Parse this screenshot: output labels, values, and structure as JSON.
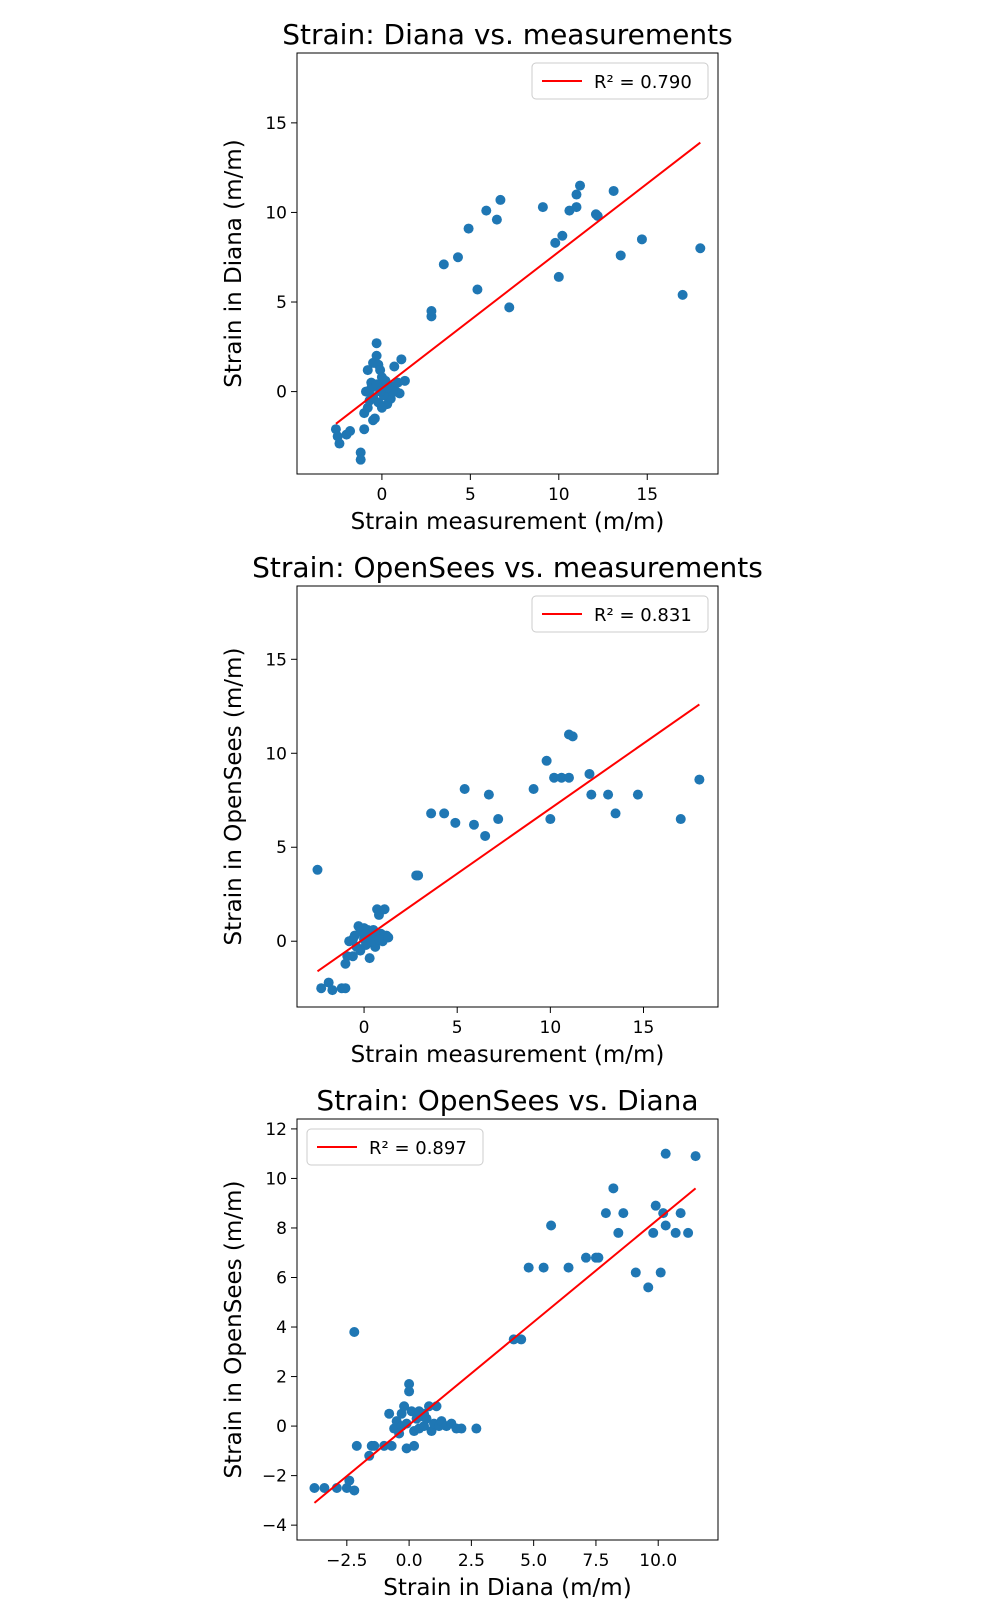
{
  "chart_data": [
    {
      "type": "scatter",
      "title": "Strain: Diana vs. measurements",
      "xlabel": "Strain measurement (m/m)",
      "ylabel": "Strain in Diana (m/m)",
      "xlim": [
        -4.8,
        19.0
      ],
      "ylim": [
        -4.6,
        18.9
      ],
      "xticks": [
        0,
        5,
        10,
        15
      ],
      "xtick_labels": [
        "0",
        "5",
        "10",
        "15"
      ],
      "yticks": [
        0,
        5,
        10,
        15
      ],
      "ytick_labels": [
        "0",
        "5",
        "10",
        "15"
      ],
      "grid": false,
      "legend_position": "top-right",
      "legend": "R² = 0.790",
      "series": [
        {
          "points": [
            [
              -2.6,
              -2.1
            ],
            [
              -2.5,
              -2.5
            ],
            [
              -2.4,
              -2.9
            ],
            [
              -2.0,
              -2.4
            ],
            [
              -1.8,
              -2.2
            ],
            [
              -1.2,
              -3.4
            ],
            [
              -1.2,
              -3.8
            ],
            [
              -1.0,
              -2.1
            ],
            [
              -1.0,
              -1.2
            ],
            [
              -0.8,
              -0.9
            ],
            [
              -0.7,
              -0.5
            ],
            [
              -0.5,
              -1.6
            ],
            [
              -0.4,
              -1.5
            ],
            [
              -0.9,
              0.0
            ],
            [
              -0.8,
              1.2
            ],
            [
              -0.6,
              0.5
            ],
            [
              -0.5,
              1.6
            ],
            [
              -0.3,
              2.0
            ],
            [
              -0.3,
              2.7
            ],
            [
              -0.2,
              1.5
            ],
            [
              -0.1,
              1.2
            ],
            [
              0.0,
              0.8
            ],
            [
              0.1,
              0.4
            ],
            [
              0.2,
              -0.2
            ],
            [
              0.3,
              -0.7
            ],
            [
              0.4,
              0.1
            ],
            [
              0.5,
              -0.4
            ],
            [
              0.6,
              0.3
            ],
            [
              0.7,
              1.4
            ],
            [
              0.8,
              0.0
            ],
            [
              0.9,
              0.5
            ],
            [
              1.0,
              -0.1
            ],
            [
              1.1,
              1.8
            ],
            [
              1.3,
              0.6
            ],
            [
              -0.5,
              -0.3
            ],
            [
              -0.2,
              -0.6
            ],
            [
              0.0,
              -0.9
            ],
            [
              0.2,
              0.6
            ],
            [
              0.4,
              -0.3
            ],
            [
              0.6,
              0.0
            ],
            [
              -0.6,
              0.2
            ],
            [
              -0.3,
              0.4
            ],
            [
              0.1,
              -0.2
            ],
            [
              0.3,
              0.2
            ],
            [
              -0.1,
              0.0
            ],
            [
              2.8,
              4.2
            ],
            [
              2.8,
              4.5
            ],
            [
              3.5,
              7.1
            ],
            [
              4.3,
              7.5
            ],
            [
              4.9,
              9.1
            ],
            [
              5.4,
              5.7
            ],
            [
              5.9,
              10.1
            ],
            [
              6.5,
              9.6
            ],
            [
              6.7,
              10.7
            ],
            [
              7.2,
              4.7
            ],
            [
              9.1,
              10.3
            ],
            [
              9.8,
              8.3
            ],
            [
              10.0,
              6.4
            ],
            [
              10.2,
              8.7
            ],
            [
              10.6,
              10.1
            ],
            [
              11.0,
              10.3
            ],
            [
              11.0,
              11.0
            ],
            [
              11.2,
              11.5
            ],
            [
              12.1,
              9.9
            ],
            [
              12.2,
              9.8
            ],
            [
              13.1,
              11.2
            ],
            [
              13.5,
              7.6
            ],
            [
              14.7,
              8.5
            ],
            [
              17.0,
              5.4
            ],
            [
              18.0,
              8.0
            ]
          ]
        },
        {
          "type": "line",
          "name": "R² = 0.790",
          "color": "#ff0000",
          "points": [
            [
              -2.6,
              -1.8
            ],
            [
              18.0,
              13.9
            ]
          ]
        }
      ],
      "marker_color": "#1f77b4"
    },
    {
      "type": "scatter",
      "title": "Strain: OpenSees vs. measurements",
      "xlabel": "Strain measurement (m/m)",
      "ylabel": "Strain in OpenSees (m/m)",
      "xlim": [
        -3.6,
        19.0
      ],
      "ylim": [
        -3.5,
        18.9
      ],
      "xticks": [
        0,
        5,
        10,
        15
      ],
      "xtick_labels": [
        "0",
        "5",
        "10",
        "15"
      ],
      "yticks": [
        0,
        5,
        10,
        15
      ],
      "ytick_labels": [
        "0",
        "5",
        "10",
        "15"
      ],
      "grid": false,
      "legend_position": "top-right",
      "legend": "R² = 0.831",
      "series": [
        {
          "points": [
            [
              -2.5,
              3.8
            ],
            [
              -2.3,
              -2.5
            ],
            [
              -1.9,
              -2.2
            ],
            [
              -1.7,
              -2.6
            ],
            [
              -1.2,
              -2.5
            ],
            [
              -1.0,
              -2.5
            ],
            [
              -1.0,
              -1.2
            ],
            [
              -0.9,
              -0.8
            ],
            [
              -0.8,
              0.0
            ],
            [
              -0.6,
              -0.8
            ],
            [
              -0.5,
              0.3
            ],
            [
              -0.3,
              0.8
            ],
            [
              -0.2,
              0.5
            ],
            [
              0.0,
              0.1
            ],
            [
              0.1,
              -0.2
            ],
            [
              0.2,
              0.6
            ],
            [
              0.3,
              -0.9
            ],
            [
              0.4,
              0.3
            ],
            [
              0.5,
              0.6
            ],
            [
              0.6,
              -0.3
            ],
            [
              0.7,
              1.7
            ],
            [
              0.8,
              1.4
            ],
            [
              0.9,
              0.4
            ],
            [
              1.0,
              0.0
            ],
            [
              1.1,
              1.7
            ],
            [
              1.2,
              0.3
            ],
            [
              1.3,
              0.2
            ],
            [
              -0.4,
              -0.3
            ],
            [
              -0.2,
              -0.5
            ],
            [
              0.0,
              0.7
            ],
            [
              0.2,
              0.2
            ],
            [
              0.4,
              0.0
            ],
            [
              0.6,
              0.4
            ],
            [
              0.8,
              0.1
            ],
            [
              -0.6,
              0.1
            ],
            [
              0.1,
              0.4
            ],
            [
              2.8,
              3.5
            ],
            [
              2.9,
              3.5
            ],
            [
              3.6,
              6.8
            ],
            [
              4.3,
              6.8
            ],
            [
              4.9,
              6.3
            ],
            [
              5.4,
              8.1
            ],
            [
              5.9,
              6.2
            ],
            [
              6.5,
              5.6
            ],
            [
              6.7,
              7.8
            ],
            [
              7.2,
              6.5
            ],
            [
              9.1,
              8.1
            ],
            [
              9.8,
              9.6
            ],
            [
              10.0,
              6.5
            ],
            [
              10.2,
              8.7
            ],
            [
              10.6,
              8.7
            ],
            [
              11.0,
              8.7
            ],
            [
              11.0,
              11.0
            ],
            [
              11.2,
              10.9
            ],
            [
              12.1,
              8.9
            ],
            [
              12.2,
              7.8
            ],
            [
              13.1,
              7.8
            ],
            [
              13.5,
              6.8
            ],
            [
              14.7,
              7.8
            ],
            [
              17.0,
              6.5
            ],
            [
              18.0,
              8.6
            ]
          ]
        },
        {
          "type": "line",
          "name": "R² = 0.831",
          "color": "#ff0000",
          "points": [
            [
              -2.5,
              -1.6
            ],
            [
              18.0,
              12.6
            ]
          ]
        }
      ],
      "marker_color": "#1f77b4"
    },
    {
      "type": "scatter",
      "title": "Strain: OpenSees vs. Diana",
      "xlabel": "Strain in Diana (m/m)",
      "ylabel": "Strain in OpenSees (m/m)",
      "xlim": [
        -4.5,
        12.4
      ],
      "ylim": [
        -4.6,
        12.4
      ],
      "xticks": [
        -2.5,
        0.0,
        2.5,
        5.0,
        7.5,
        10.0
      ],
      "xtick_labels": [
        "−2.5",
        "0.0",
        "2.5",
        "5.0",
        "7.5",
        "10.0"
      ],
      "yticks": [
        -4,
        -2,
        0,
        2,
        4,
        6,
        8,
        10,
        12
      ],
      "ytick_labels": [
        "−4",
        "−2",
        "0",
        "2",
        "4",
        "6",
        "8",
        "10",
        "12"
      ],
      "grid": false,
      "legend_position": "top-left",
      "legend": "R² = 0.897",
      "series": [
        {
          "points": [
            [
              -3.8,
              -2.5
            ],
            [
              -3.4,
              -2.5
            ],
            [
              -2.9,
              -2.5
            ],
            [
              -2.5,
              -2.5
            ],
            [
              -2.4,
              -2.2
            ],
            [
              -2.2,
              -2.6
            ],
            [
              -2.2,
              3.8
            ],
            [
              -2.1,
              -0.8
            ],
            [
              -1.6,
              -1.2
            ],
            [
              -1.5,
              -0.8
            ],
            [
              -1.4,
              -0.8
            ],
            [
              -1.0,
              -0.8
            ],
            [
              -0.8,
              0.5
            ],
            [
              -0.7,
              -0.8
            ],
            [
              -0.6,
              -0.1
            ],
            [
              -0.5,
              0.2
            ],
            [
              -0.4,
              -0.3
            ],
            [
              -0.3,
              0.5
            ],
            [
              -0.2,
              0.8
            ],
            [
              -0.1,
              0.1
            ],
            [
              0.0,
              1.7
            ],
            [
              0.0,
              1.4
            ],
            [
              0.1,
              0.6
            ],
            [
              0.2,
              -0.2
            ],
            [
              0.3,
              0.3
            ],
            [
              0.4,
              -0.1
            ],
            [
              0.5,
              0.4
            ],
            [
              0.6,
              0.0
            ],
            [
              0.7,
              0.3
            ],
            [
              0.8,
              0.8
            ],
            [
              0.9,
              -0.2
            ],
            [
              1.0,
              0.1
            ],
            [
              1.1,
              0.8
            ],
            [
              1.2,
              0.0
            ],
            [
              1.3,
              0.2
            ],
            [
              1.5,
              0.0
            ],
            [
              1.7,
              0.1
            ],
            [
              1.9,
              -0.1
            ],
            [
              2.1,
              -0.1
            ],
            [
              2.7,
              -0.1
            ],
            [
              -0.1,
              -0.9
            ],
            [
              0.2,
              -0.8
            ],
            [
              0.4,
              0.6
            ],
            [
              -0.3,
              0.0
            ],
            [
              0.6,
              0.5
            ],
            [
              4.2,
              3.5
            ],
            [
              4.5,
              3.5
            ],
            [
              4.8,
              6.4
            ],
            [
              5.4,
              6.4
            ],
            [
              5.7,
              8.1
            ],
            [
              6.4,
              6.4
            ],
            [
              7.1,
              6.8
            ],
            [
              7.5,
              6.8
            ],
            [
              7.6,
              6.8
            ],
            [
              7.9,
              8.6
            ],
            [
              8.2,
              9.6
            ],
            [
              8.4,
              7.8
            ],
            [
              8.6,
              8.6
            ],
            [
              9.1,
              6.2
            ],
            [
              9.6,
              5.6
            ],
            [
              9.8,
              7.8
            ],
            [
              9.9,
              8.9
            ],
            [
              10.1,
              6.2
            ],
            [
              10.2,
              8.6
            ],
            [
              10.3,
              8.1
            ],
            [
              10.3,
              11.0
            ],
            [
              10.7,
              7.8
            ],
            [
              10.9,
              8.6
            ],
            [
              11.2,
              7.8
            ],
            [
              11.5,
              10.9
            ]
          ]
        },
        {
          "type": "line",
          "name": "R² = 0.897",
          "color": "#ff0000",
          "points": [
            [
              -3.8,
              -3.1
            ],
            [
              11.5,
              9.6
            ]
          ]
        }
      ],
      "marker_color": "#1f77b4"
    }
  ]
}
